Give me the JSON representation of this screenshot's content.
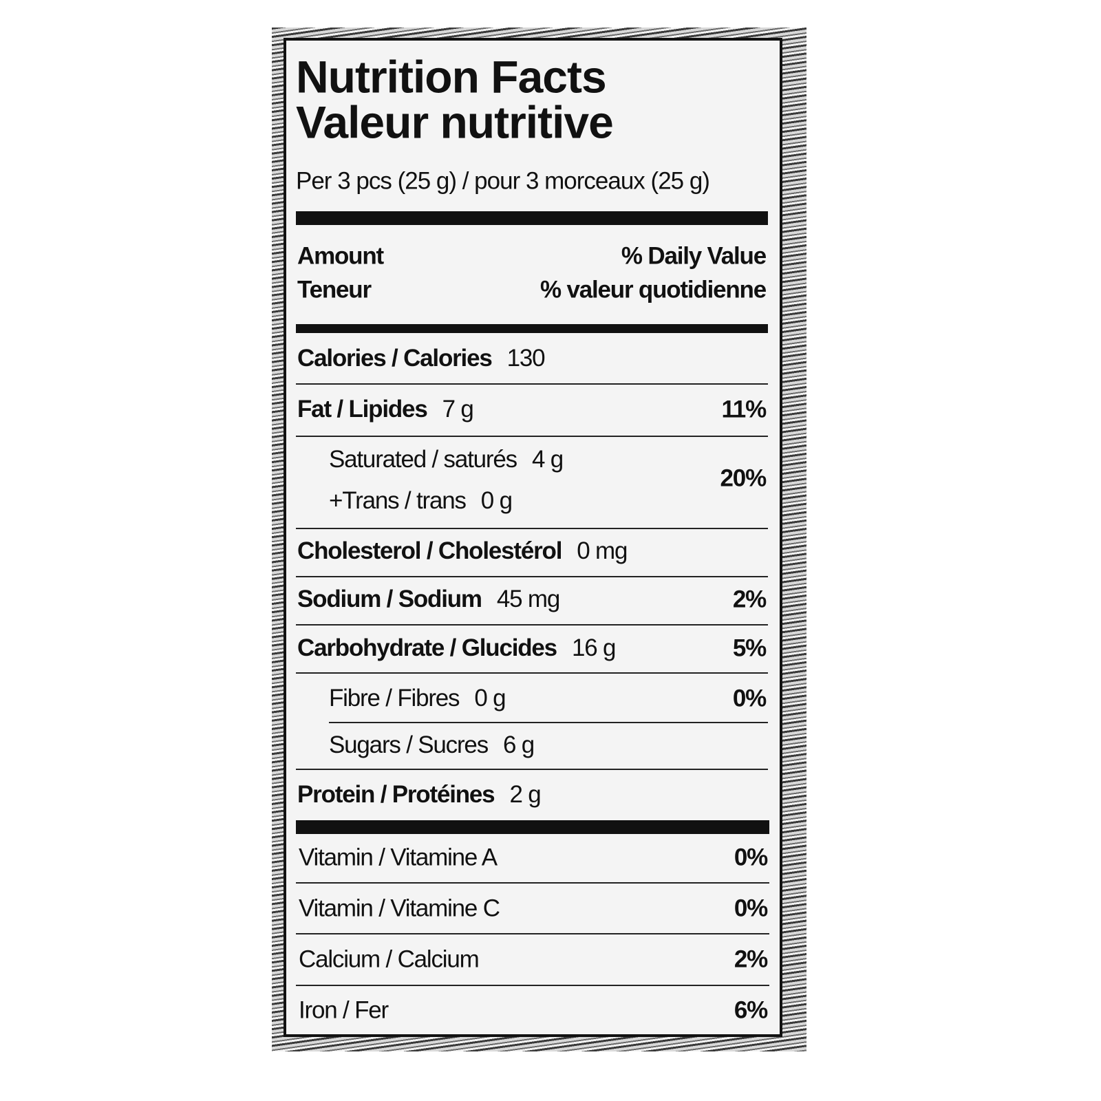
{
  "label": {
    "title": "Nutrition Facts",
    "title_fr": "Valeur nutritive",
    "serving": "Per 3 pcs (25 g) / pour 3 morceaux (25 g)",
    "header": {
      "amount": "Amount",
      "amount_fr": "Teneur",
      "daily_value": "% Daily Value",
      "daily_value_fr": "% valeur quotidienne"
    },
    "rows": [
      {
        "name": "Calories / Calories",
        "amount": "130"
      },
      {
        "name": "Fat / Lipides",
        "amount": "7 g",
        "dv": "11%"
      },
      {
        "lines": [
          {
            "name": "Saturated / saturés",
            "amount": "4 g"
          },
          {
            "name": "+Trans / trans",
            "amount": "0 g"
          }
        ],
        "dv": "20%"
      },
      {
        "name": "Cholesterol / Cholestérol",
        "amount": "0 mg"
      },
      {
        "name": "Sodium / Sodium",
        "amount": "45 mg",
        "dv": "2%"
      },
      {
        "name": "Carbohydrate / Glucides",
        "amount": "16 g",
        "dv": "5%"
      },
      {
        "name": "Fibre / Fibres",
        "amount": "0 g",
        "dv": "0%"
      },
      {
        "name": "Sugars / Sucres",
        "amount": "6 g"
      },
      {
        "name": "Protein / Protéines",
        "amount": "2 g"
      }
    ],
    "vitamins": [
      {
        "name": "Vitamin / Vitamine A",
        "dv": "0%"
      },
      {
        "name": "Vitamin / Vitamine C",
        "dv": "0%"
      },
      {
        "name": "Calcium / Calcium",
        "dv": "2%"
      },
      {
        "name": "Iron / Fer",
        "dv": "6%"
      }
    ]
  }
}
